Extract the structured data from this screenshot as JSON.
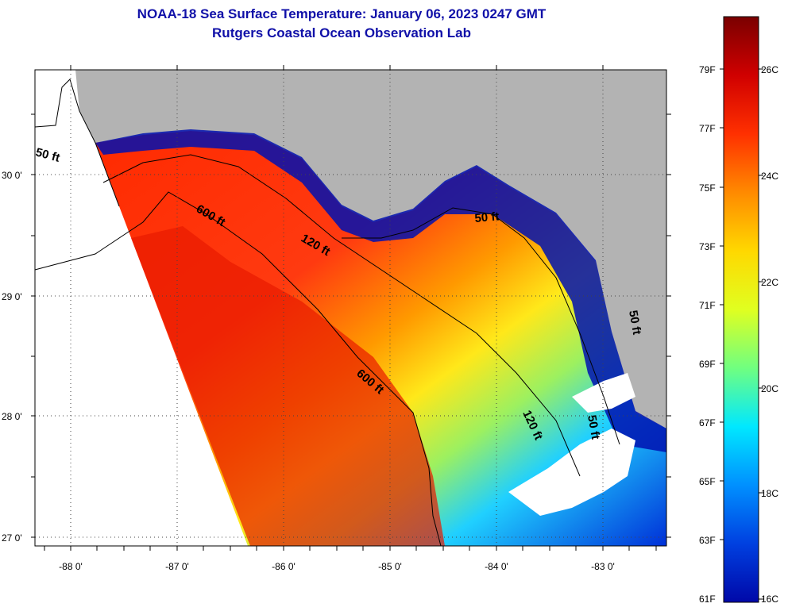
{
  "title_line1": "NOAA-18 Sea Surface Temperature:  January 06, 2023 0247 GMT",
  "title_line2": "Rutgers Coastal Ocean Observation Lab",
  "map": {
    "lat_labels": [
      "30 0'",
      "29 0'",
      "28 0'",
      "27 0'"
    ],
    "lon_labels": [
      "-88 0'",
      "-87 0'",
      "-86 0'",
      "-85 0'",
      "-84 0'",
      "-83 0'"
    ],
    "isobath_labels": [
      "50 ft",
      "600 ft",
      "120 ft",
      "50 ft",
      "600 ft",
      "120 ft",
      "50 ft",
      "50 ft"
    ]
  },
  "colorbar": {
    "f_labels": [
      "79F",
      "77F",
      "75F",
      "73F",
      "71F",
      "69F",
      "67F",
      "65F",
      "63F",
      "61F"
    ],
    "c_labels": [
      "26C",
      "24C",
      "22C",
      "20C",
      "18C",
      "16C"
    ],
    "colors": [
      "#7a0000",
      "#d00000",
      "#ff3000",
      "#ff8a00",
      "#ffd800",
      "#e0ff20",
      "#70ff80",
      "#00e8ff",
      "#0090ff",
      "#0040e0",
      "#0008a8"
    ]
  }
}
